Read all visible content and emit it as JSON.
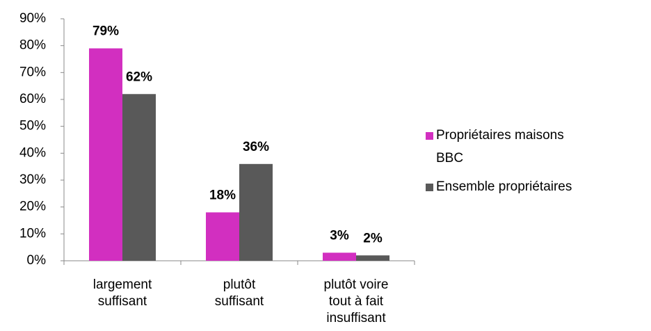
{
  "chart_data": {
    "type": "bar",
    "categories": [
      "largement suffisant",
      "plutôt suffisant",
      "plutôt voire tout à fait insuffisant"
    ],
    "series": [
      {
        "name": "Propriétaires maisons BBC",
        "color": "#d22fc0",
        "values": [
          79,
          18,
          3
        ],
        "value_labels": [
          "79%",
          "18%",
          "3%"
        ]
      },
      {
        "name": "Ensemble propriétaires",
        "color": "#595959",
        "values": [
          62,
          36,
          2
        ],
        "value_labels": [
          "62%",
          "36%",
          "2%"
        ]
      }
    ],
    "ylim": [
      0,
      90
    ],
    "yticks": [
      {
        "value": 0,
        "label": "0%"
      },
      {
        "value": 10,
        "label": "10%"
      },
      {
        "value": 20,
        "label": "20%"
      },
      {
        "value": 30,
        "label": "30%"
      },
      {
        "value": 40,
        "label": "40%"
      },
      {
        "value": 50,
        "label": "50%"
      },
      {
        "value": 60,
        "label": "60%"
      },
      {
        "value": 70,
        "label": "70%"
      },
      {
        "value": 80,
        "label": "80%"
      },
      {
        "value": 90,
        "label": "90%"
      }
    ],
    "legend": "right"
  }
}
